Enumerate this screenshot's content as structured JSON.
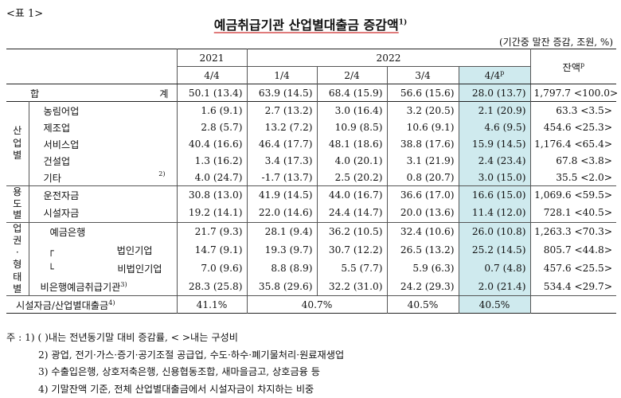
{
  "label": "<표 1>",
  "title": "예금취급기관 산업별대출금 증감액",
  "title_sup": "1)",
  "unit": "(기간중 말잔 증감, 조원, %)",
  "header": {
    "y2021": "2021",
    "y2022": "2022",
    "q2021": "4/4",
    "q1": "1/4",
    "q2": "2/4",
    "q3": "3/4",
    "q4": "4/4",
    "q4_sup": "p",
    "bal": "잔액",
    "bal_sup": "p"
  },
  "total": {
    "label_a": "합",
    "label_b": "계",
    "values": [
      "50.1 (13.4)",
      "63.9 (14.5)",
      "68.4 (15.9)",
      "56.6 (15.6)",
      "28.0 (13.7)",
      "1,797.7 <100.0>"
    ]
  },
  "groups": {
    "industry": "산업별",
    "use": "용도별",
    "sector": "업권·형태별"
  },
  "rows": [
    {
      "name": "농림어업",
      "sup": "",
      "values": [
        "1.6 (9.1)",
        "2.7 (13.2)",
        "3.0 (16.4)",
        "3.2 (20.5)",
        "2.1 (20.9)",
        "63.3 <3.5>"
      ]
    },
    {
      "name": "제조업",
      "sup": "",
      "values": [
        "2.8 (5.7)",
        "13.2 (7.2)",
        "10.9 (8.5)",
        "10.6 (9.1)",
        "4.6 (9.5)",
        "454.6 <25.3>"
      ]
    },
    {
      "name": "서비스업",
      "sup": "",
      "values": [
        "40.4 (16.6)",
        "46.4 (17.7)",
        "48.1 (18.6)",
        "38.8 (17.6)",
        "15.9 (14.5)",
        "1,176.4 <65.4>"
      ]
    },
    {
      "name": "건설업",
      "sup": "",
      "values": [
        "1.3 (16.2)",
        "3.4 (17.3)",
        "4.0 (20.1)",
        "3.1 (21.9)",
        "2.4 (23.4)",
        "67.8 <3.8>"
      ]
    },
    {
      "name": "기타",
      "sup": "2)",
      "values": [
        "4.0 (24.7)",
        "-1.7 (13.7)",
        "2.5 (20.2)",
        "0.8 (20.7)",
        "3.0 (15.0)",
        "35.5 <2.0>"
      ]
    },
    {
      "name": "운전자금",
      "sup": "",
      "values": [
        "30.8 (13.0)",
        "41.9 (14.5)",
        "44.0 (16.7)",
        "36.6 (17.0)",
        "16.6 (15.0)",
        "1,069.6 <59.5>"
      ]
    },
    {
      "name": "시설자금",
      "sup": "",
      "values": [
        "19.2 (14.1)",
        "22.0 (14.6)",
        "24.4 (14.7)",
        "20.0 (13.6)",
        "11.4 (12.0)",
        "728.1 <40.5>"
      ]
    },
    {
      "name": "예금은행",
      "sup": "",
      "values": [
        "21.7 (9.3)",
        "28.1 (9.4)",
        "36.2 (10.5)",
        "32.4 (10.6)",
        "26.0 (10.8)",
        "1,263.3 <70.3>"
      ]
    },
    {
      "name": "┌ 법인기업",
      "sup": "",
      "values": [
        "14.7 (9.1)",
        "19.3 (9.7)",
        "30.7 (12.2)",
        "26.5 (13.2)",
        "25.2 (14.5)",
        "805.7 <44.8>"
      ]
    },
    {
      "name": "└ 비법인기업",
      "sup": "",
      "values": [
        "7.0 (9.6)",
        "8.8 (8.9)",
        "5.5 (7.7)",
        "5.9 (6.3)",
        "0.7 (4.8)",
        "457.6 <25.5>"
      ]
    },
    {
      "name": "비은행예금취급기관",
      "sup": "3)",
      "values": [
        "28.3 (25.8)",
        "35.8 (29.6)",
        "32.2 (31.0)",
        "24.2 (29.3)",
        "2.0 (21.4)",
        "534.4 <29.7>"
      ]
    }
  ],
  "ratio": {
    "label": "시설자금/산업별대출금",
    "sup": "4)",
    "values": [
      "41.1%",
      "40.7%",
      "40.5%",
      "40.5%"
    ]
  },
  "notes": [
    "주 : 1) (    )내는 전년동기말 대비 증감률, <    >내는 구성비",
    "2) 광업, 전기·가스·증기·공기조절 공급업, 수도·하수·폐기물처리·원료재생업",
    "3) 수출입은행, 상호저축은행, 신용협동조합, 새마을금고, 상호금융 등",
    "4) 기말잔액 기준, 전체 산업별대출금에서 시설자금이 차지하는 비중"
  ],
  "colors": {
    "highlight": "#cfeaee",
    "title_underline": "#e07b7b"
  }
}
